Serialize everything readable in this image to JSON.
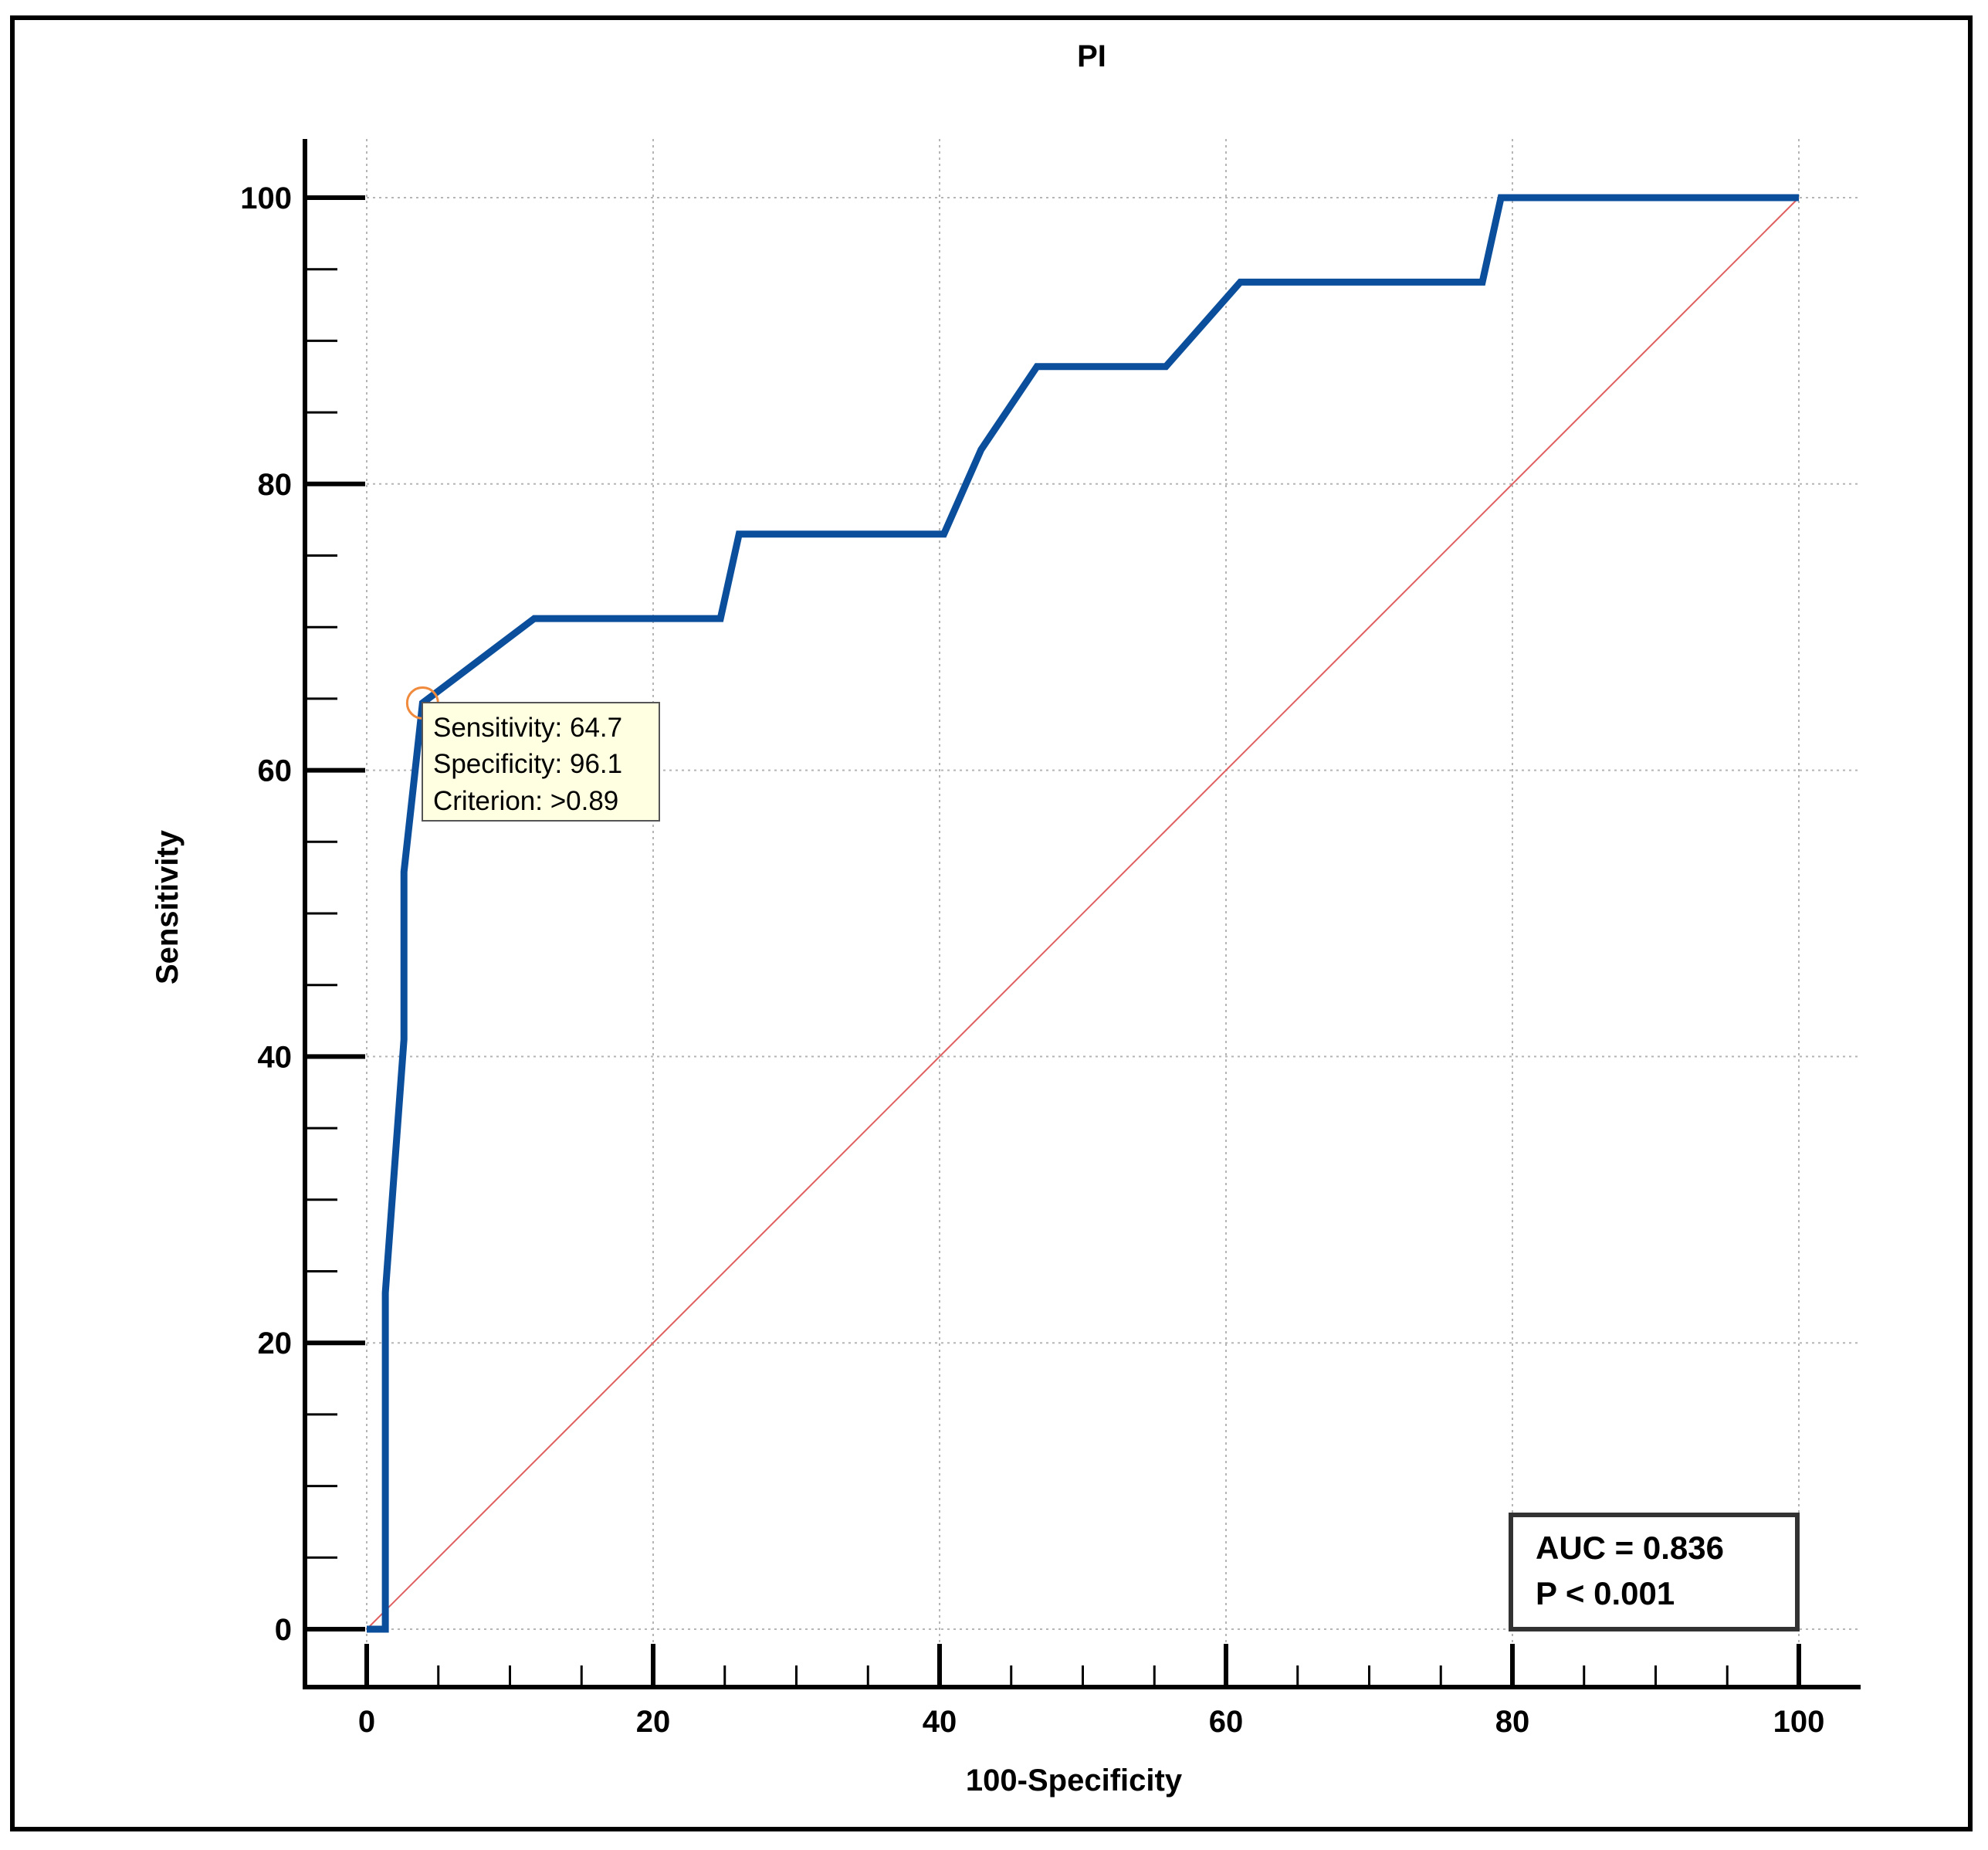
{
  "chart_data": {
    "type": "line",
    "title": "PI",
    "xlabel": "100-Specificity",
    "ylabel": "Sensitivity",
    "xlim": [
      0,
      100
    ],
    "ylim": [
      0,
      100
    ],
    "xticks": [
      "0",
      "20",
      "40",
      "60",
      "80",
      "100"
    ],
    "yticks": [
      "0",
      "20",
      "40",
      "60",
      "80",
      "100"
    ],
    "grid": true,
    "series": [
      {
        "name": "ROC curve",
        "color": "#0b4f9c",
        "x": [
          0,
          1.3,
          1.3,
          2.6,
          2.6,
          3.9,
          11.7,
          24.7,
          26.0,
          40.3,
          42.9,
          46.8,
          55.8,
          61.0,
          77.9,
          79.2,
          100
        ],
        "y": [
          0,
          0,
          23.5,
          41.2,
          52.9,
          64.7,
          70.6,
          70.6,
          76.5,
          76.5,
          82.4,
          88.2,
          88.2,
          94.1,
          94.1,
          100,
          100
        ]
      },
      {
        "name": "Reference line",
        "color": "#e06060",
        "x": [
          0,
          100
        ],
        "y": [
          0,
          100
        ]
      }
    ],
    "marker": {
      "x": 3.9,
      "y": 64.7,
      "tooltip": [
        "Sensitivity: 64.7",
        "Specificity: 96.1",
        "Criterion: >0.89"
      ]
    },
    "annotation": {
      "lines": [
        "AUC = 0.836",
        "P < 0.001"
      ],
      "placement": "bottom-right"
    }
  }
}
